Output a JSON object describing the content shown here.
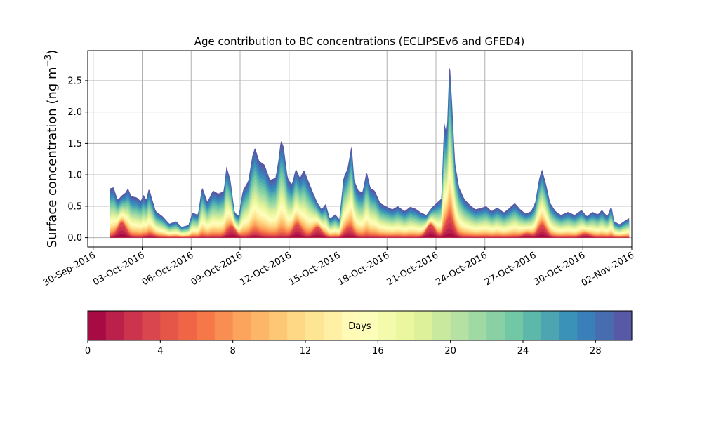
{
  "chart_data": {
    "type": "area",
    "title": "Age contribution to BC concentrations (ECLIPSEv6 and GFED4)",
    "ylabel_main": "Surface concentration (ng m",
    "ylabel_exponent": "−3",
    "ylabel_close": ")",
    "xlabel": "",
    "ylim": [
      -0.15,
      2.98
    ],
    "y_ticks": [
      {
        "value": 0.0,
        "label": "0.0"
      },
      {
        "value": 0.5,
        "label": "0.5"
      },
      {
        "value": 1.0,
        "label": "1.0"
      },
      {
        "value": 1.5,
        "label": "1.5"
      },
      {
        "value": 2.0,
        "label": "2.0"
      },
      {
        "value": 2.5,
        "label": "2.5"
      }
    ],
    "xlim": [
      "2016-09-29T16:00",
      "2016-11-02T00:00"
    ],
    "x_ticks": [
      {
        "value": "2016-09-30",
        "label": "30-Sep-2016"
      },
      {
        "value": "2016-10-03",
        "label": "03-Oct-2016"
      },
      {
        "value": "2016-10-06",
        "label": "06-Oct-2016"
      },
      {
        "value": "2016-10-09",
        "label": "09-Oct-2016"
      },
      {
        "value": "2016-10-12",
        "label": "12-Oct-2016"
      },
      {
        "value": "2016-10-15",
        "label": "15-Oct-2016"
      },
      {
        "value": "2016-10-18",
        "label": "18-Oct-2016"
      },
      {
        "value": "2016-10-21",
        "label": "21-Oct-2016"
      },
      {
        "value": "2016-10-24",
        "label": "24-Oct-2016"
      },
      {
        "value": "2016-10-27",
        "label": "27-Oct-2016"
      },
      {
        "value": "2016-10-30",
        "label": "30-Oct-2016"
      },
      {
        "value": "2016-11-02",
        "label": "02-Nov-2016"
      }
    ],
    "grid": true,
    "series_by_age_days": "stacked contributions from age 0 (bottom) to 30 days (top)",
    "total_concentration": [
      [
        "2016-10-01T00:00",
        0.78
      ],
      [
        "2016-10-01T06:00",
        0.8
      ],
      [
        "2016-10-01T12:00",
        0.6
      ],
      [
        "2016-10-01T18:00",
        0.67
      ],
      [
        "2016-10-02T00:00",
        0.72
      ],
      [
        "2016-10-02T03:00",
        0.79
      ],
      [
        "2016-10-02T08:00",
        0.66
      ],
      [
        "2016-10-02T16:00",
        0.64
      ],
      [
        "2016-10-02T22:00",
        0.58
      ],
      [
        "2016-10-03T02:00",
        0.68
      ],
      [
        "2016-10-03T06:00",
        0.6
      ],
      [
        "2016-10-03T10:00",
        0.79
      ],
      [
        "2016-10-03T14:00",
        0.64
      ],
      [
        "2016-10-03T20:00",
        0.42
      ],
      [
        "2016-10-04T06:00",
        0.34
      ],
      [
        "2016-10-04T16:00",
        0.22
      ],
      [
        "2016-10-05T02:00",
        0.26
      ],
      [
        "2016-10-05T10:00",
        0.17
      ],
      [
        "2016-10-05T20:00",
        0.2
      ],
      [
        "2016-10-06T02:00",
        0.4
      ],
      [
        "2016-10-06T10:00",
        0.36
      ],
      [
        "2016-10-06T16:00",
        0.81
      ],
      [
        "2016-10-07T00:00",
        0.57
      ],
      [
        "2016-10-07T08:00",
        0.75
      ],
      [
        "2016-10-07T16:00",
        0.7
      ],
      [
        "2016-10-08T00:00",
        0.74
      ],
      [
        "2016-10-08T04:00",
        1.14
      ],
      [
        "2016-10-08T10:00",
        0.91
      ],
      [
        "2016-10-08T16:00",
        0.4
      ],
      [
        "2016-10-08T22:00",
        0.35
      ],
      [
        "2016-10-09T04:00",
        0.75
      ],
      [
        "2016-10-09T12:00",
        0.9
      ],
      [
        "2016-10-09T18:00",
        1.3
      ],
      [
        "2016-10-09T22:00",
        1.44
      ],
      [
        "2016-10-10T04:00",
        1.22
      ],
      [
        "2016-10-10T12:00",
        1.16
      ],
      [
        "2016-10-10T20:00",
        0.92
      ],
      [
        "2016-10-11T04:00",
        0.95
      ],
      [
        "2016-10-11T08:00",
        1.2
      ],
      [
        "2016-10-11T12:00",
        1.56
      ],
      [
        "2016-10-11T16:00",
        1.45
      ],
      [
        "2016-10-11T22:00",
        0.95
      ],
      [
        "2016-10-12T04:00",
        0.84
      ],
      [
        "2016-10-12T10:00",
        1.1
      ],
      [
        "2016-10-12T16:00",
        0.95
      ],
      [
        "2016-10-12T22:00",
        1.08
      ],
      [
        "2016-10-13T06:00",
        0.86
      ],
      [
        "2016-10-13T12:00",
        0.7
      ],
      [
        "2016-10-13T18:00",
        0.55
      ],
      [
        "2016-10-14T00:00",
        0.45
      ],
      [
        "2016-10-14T06:00",
        0.54
      ],
      [
        "2016-10-14T12:00",
        0.3
      ],
      [
        "2016-10-14T20:00",
        0.37
      ],
      [
        "2016-10-15T02:00",
        0.29
      ],
      [
        "2016-10-15T08:00",
        0.95
      ],
      [
        "2016-10-15T14:00",
        1.1
      ],
      [
        "2016-10-15T20:00",
        1.48
      ],
      [
        "2016-10-16T00:00",
        0.91
      ],
      [
        "2016-10-16T06:00",
        0.75
      ],
      [
        "2016-10-16T12:00",
        0.72
      ],
      [
        "2016-10-16T18:00",
        1.06
      ],
      [
        "2016-10-17T00:00",
        0.78
      ],
      [
        "2016-10-17T06:00",
        0.75
      ],
      [
        "2016-10-17T14:00",
        0.55
      ],
      [
        "2016-10-17T22:00",
        0.5
      ],
      [
        "2016-10-18T08:00",
        0.45
      ],
      [
        "2016-10-18T16:00",
        0.5
      ],
      [
        "2016-10-19T02:00",
        0.42
      ],
      [
        "2016-10-19T10:00",
        0.49
      ],
      [
        "2016-10-19T18:00",
        0.46
      ],
      [
        "2016-10-20T02:00",
        0.4
      ],
      [
        "2016-10-20T10:00",
        0.36
      ],
      [
        "2016-10-20T18:00",
        0.48
      ],
      [
        "2016-10-21T02:00",
        0.56
      ],
      [
        "2016-10-21T08:00",
        0.62
      ],
      [
        "2016-10-21T12:00",
        1.84
      ],
      [
        "2016-10-21T16:00",
        1.64
      ],
      [
        "2016-10-21T20:00",
        2.85
      ],
      [
        "2016-10-22T00:00",
        2.1
      ],
      [
        "2016-10-22T04:00",
        1.2
      ],
      [
        "2016-10-22T10:00",
        0.8
      ],
      [
        "2016-10-22T18:00",
        0.61
      ],
      [
        "2016-10-23T02:00",
        0.52
      ],
      [
        "2016-10-23T10:00",
        0.45
      ],
      [
        "2016-10-23T18:00",
        0.47
      ],
      [
        "2016-10-24T02:00",
        0.5
      ],
      [
        "2016-10-24T10:00",
        0.42
      ],
      [
        "2016-10-24T18:00",
        0.48
      ],
      [
        "2016-10-25T04:00",
        0.4
      ],
      [
        "2016-10-25T12:00",
        0.47
      ],
      [
        "2016-10-25T20:00",
        0.55
      ],
      [
        "2016-10-26T04:00",
        0.45
      ],
      [
        "2016-10-26T12:00",
        0.38
      ],
      [
        "2016-10-26T20:00",
        0.42
      ],
      [
        "2016-10-27T02:00",
        0.56
      ],
      [
        "2016-10-27T08:00",
        0.95
      ],
      [
        "2016-10-27T12:00",
        1.09
      ],
      [
        "2016-10-27T18:00",
        0.85
      ],
      [
        "2016-10-28T00:00",
        0.55
      ],
      [
        "2016-10-28T08:00",
        0.42
      ],
      [
        "2016-10-28T16:00",
        0.36
      ],
      [
        "2016-10-29T02:00",
        0.41
      ],
      [
        "2016-10-29T12:00",
        0.36
      ],
      [
        "2016-10-29T22:00",
        0.44
      ],
      [
        "2016-10-30T06:00",
        0.34
      ],
      [
        "2016-10-30T14:00",
        0.41
      ],
      [
        "2016-10-30T22:00",
        0.37
      ],
      [
        "2016-10-31T04:00",
        0.44
      ],
      [
        "2016-10-31T12:00",
        0.34
      ],
      [
        "2016-10-31T18:00",
        0.51
      ],
      [
        "2016-10-31T22:00",
        0.26
      ],
      [
        "2016-11-01T06:00",
        0.21
      ],
      [
        "2016-11-01T14:00",
        0.27
      ],
      [
        "2016-11-01T20:00",
        0.31
      ]
    ],
    "fresh_peaks_age_lt_4_days": [
      [
        "2016-10-01T18:00",
        0.22
      ],
      [
        "2016-10-03T12:00",
        0.03
      ],
      [
        "2016-10-08T12:00",
        0.15
      ],
      [
        "2016-10-09T22:00",
        0.05
      ],
      [
        "2016-10-12T12:00",
        0.18
      ],
      [
        "2016-10-13T18:00",
        0.15
      ],
      [
        "2016-10-15T16:00",
        0.12
      ],
      [
        "2016-10-20T16:00",
        0.2
      ],
      [
        "2016-10-21T20:00",
        0.25
      ],
      [
        "2016-10-26T14:00",
        0.05
      ],
      [
        "2016-10-27T12:00",
        0.17
      ],
      [
        "2016-10-30T04:00",
        0.05
      ]
    ]
  },
  "colorbar": {
    "label": "Days",
    "range": [
      0,
      30
    ],
    "n_bins": 30,
    "ticks": [
      {
        "value": 0,
        "label": "0"
      },
      {
        "value": 4,
        "label": "4"
      },
      {
        "value": 8,
        "label": "8"
      },
      {
        "value": 12,
        "label": "12"
      },
      {
        "value": 16,
        "label": "16"
      },
      {
        "value": 20,
        "label": "20"
      },
      {
        "value": 24,
        "label": "24"
      },
      {
        "value": 28,
        "label": "28"
      }
    ],
    "colormap": "Spectral",
    "colormap_stops": [
      "#9e0142",
      "#d53e4f",
      "#f46d43",
      "#fdae61",
      "#fee08b",
      "#ffffbf",
      "#e6f598",
      "#abdda4",
      "#66c2a5",
      "#3288bd",
      "#5e4fa2"
    ]
  },
  "style": {
    "grid_color": "#b0b0b0",
    "axis_color": "#000000"
  }
}
